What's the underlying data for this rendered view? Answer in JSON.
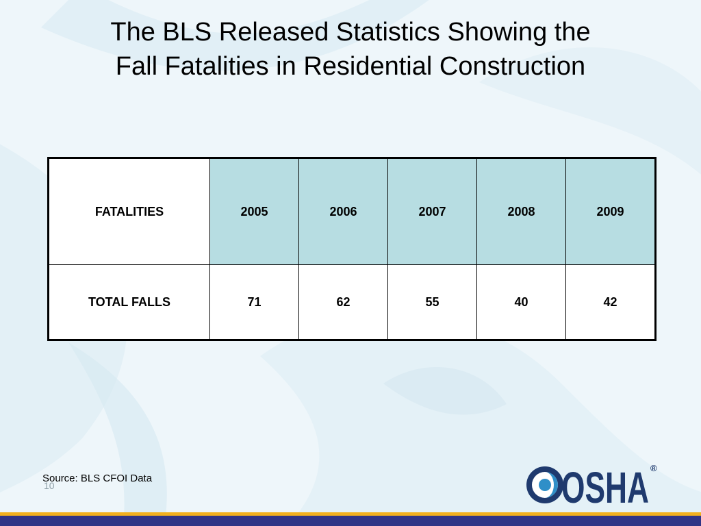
{
  "slide": {
    "title_line1": "The BLS Released Statistics Showing the",
    "title_line2": "Fall Fatalities in Residential Construction",
    "page_number": "10",
    "source": "Source: BLS CFOI Data",
    "logo_text": "OSHA",
    "logo_mark": "®"
  },
  "table": {
    "header_label": "FATALITIES",
    "years": [
      "2005",
      "2006",
      "2007",
      "2008",
      "2009"
    ],
    "row_label": "TOTAL FALLS",
    "values": [
      "71",
      "62",
      "55",
      "40",
      "42"
    ]
  },
  "colors": {
    "background": "#eef6fa",
    "header_cell": "#b7dde2",
    "footer_gold": "#f2b01e",
    "footer_navy": "#2f3486",
    "logo_navy": "#1f3a6e",
    "logo_blue": "#2f8fc8"
  }
}
